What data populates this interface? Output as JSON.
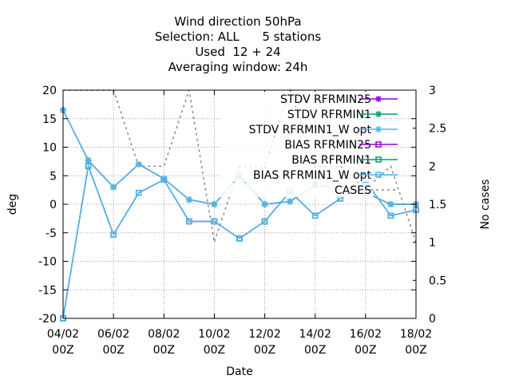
{
  "chart_data": {
    "type": "line",
    "title_lines": [
      "Wind direction 50hPa",
      "Selection: ALL      5 stations",
      "Used  12 + 24",
      "Averaging window: 24h"
    ],
    "xlabel": "Date",
    "ylabel": "deg",
    "y2label": "No cases",
    "x": [
      "04/02 00Z",
      "05/02 00Z",
      "06/02 00Z",
      "07/02 00Z",
      "08/02 00Z",
      "09/02 00Z",
      "10/02 00Z",
      "11/02 00Z",
      "12/02 00Z",
      "13/02 00Z",
      "14/02 00Z",
      "15/02 00Z",
      "16/02 00Z",
      "17/02 00Z",
      "18/02 00Z"
    ],
    "xticks": [
      {
        "i": 0,
        "top": "04/02",
        "bottom": "00Z"
      },
      {
        "i": 2,
        "top": "06/02",
        "bottom": "00Z"
      },
      {
        "i": 4,
        "top": "08/02",
        "bottom": "00Z"
      },
      {
        "i": 6,
        "top": "10/02",
        "bottom": "00Z"
      },
      {
        "i": 8,
        "top": "12/02",
        "bottom": "00Z"
      },
      {
        "i": 10,
        "top": "14/02",
        "bottom": "00Z"
      },
      {
        "i": 12,
        "top": "16/02",
        "bottom": "00Z"
      },
      {
        "i": 14,
        "top": "18/02",
        "bottom": "00Z"
      }
    ],
    "ylim": [
      -20,
      20
    ],
    "yticks": [
      -20,
      -15,
      -10,
      -5,
      0,
      5,
      10,
      15,
      20
    ],
    "y2lim": [
      0,
      3
    ],
    "y2ticks": [
      "0",
      "0.5",
      "1",
      "1.5",
      "2",
      "2.5",
      "3"
    ],
    "y2tick_values": [
      0,
      0.5,
      1,
      1.5,
      2,
      2.5,
      3
    ],
    "grid": true,
    "legend_position": "top-right",
    "series": [
      {
        "name": "STDV RFRMIN25",
        "color": "#9400d3",
        "marker": "star",
        "axis": "y",
        "values": [
          16.5,
          7.7,
          3,
          7,
          4.5,
          0.8,
          0,
          5,
          0,
          0.5,
          3.3,
          3,
          2,
          0,
          0
        ]
      },
      {
        "name": "STDV RFRMIN1",
        "color": "#009e73",
        "marker": "star",
        "axis": "y",
        "values": [
          16.5,
          7.7,
          3,
          7,
          4.5,
          0.8,
          0,
          5,
          0,
          0.5,
          3.3,
          3,
          2,
          0,
          0
        ]
      },
      {
        "name": "STDV RFRMIN1_W opt",
        "color": "#56b4e9",
        "marker": "star",
        "axis": "y",
        "values": [
          16.5,
          7.7,
          3,
          7,
          4.5,
          0.8,
          0,
          5,
          0,
          0.5,
          3.3,
          3,
          2,
          0,
          0
        ]
      },
      {
        "name": "BIAS RFRMIN25",
        "color": "#9400d3",
        "marker": "square",
        "axis": "y",
        "values": [
          -20,
          6.7,
          -5.3,
          2,
          4.3,
          -3,
          -3,
          -6,
          -3,
          2.2,
          -2,
          1,
          4,
          -2,
          -1
        ]
      },
      {
        "name": "BIAS RFRMIN1",
        "color": "#009e73",
        "marker": "square",
        "axis": "y",
        "values": [
          -20,
          6.7,
          -5.3,
          2,
          4.3,
          -3,
          -3,
          -6,
          -3,
          2.2,
          -2,
          1,
          4,
          -2,
          -1
        ]
      },
      {
        "name": "BIAS RFRMIN1_W opt",
        "color": "#56b4e9",
        "marker": "square",
        "axis": "y",
        "values": [
          -20,
          6.7,
          -5.3,
          2,
          4.3,
          -3,
          -3,
          -6,
          -3,
          2.2,
          -2,
          1,
          4,
          -2,
          -1
        ]
      },
      {
        "name": "CASES",
        "color": "#888888",
        "marker": "none",
        "dashed": true,
        "axis": "y2",
        "values": [
          3,
          3,
          3,
          2,
          2,
          3,
          1,
          2,
          2,
          3,
          2,
          2,
          1.7,
          2,
          1
        ]
      }
    ]
  }
}
